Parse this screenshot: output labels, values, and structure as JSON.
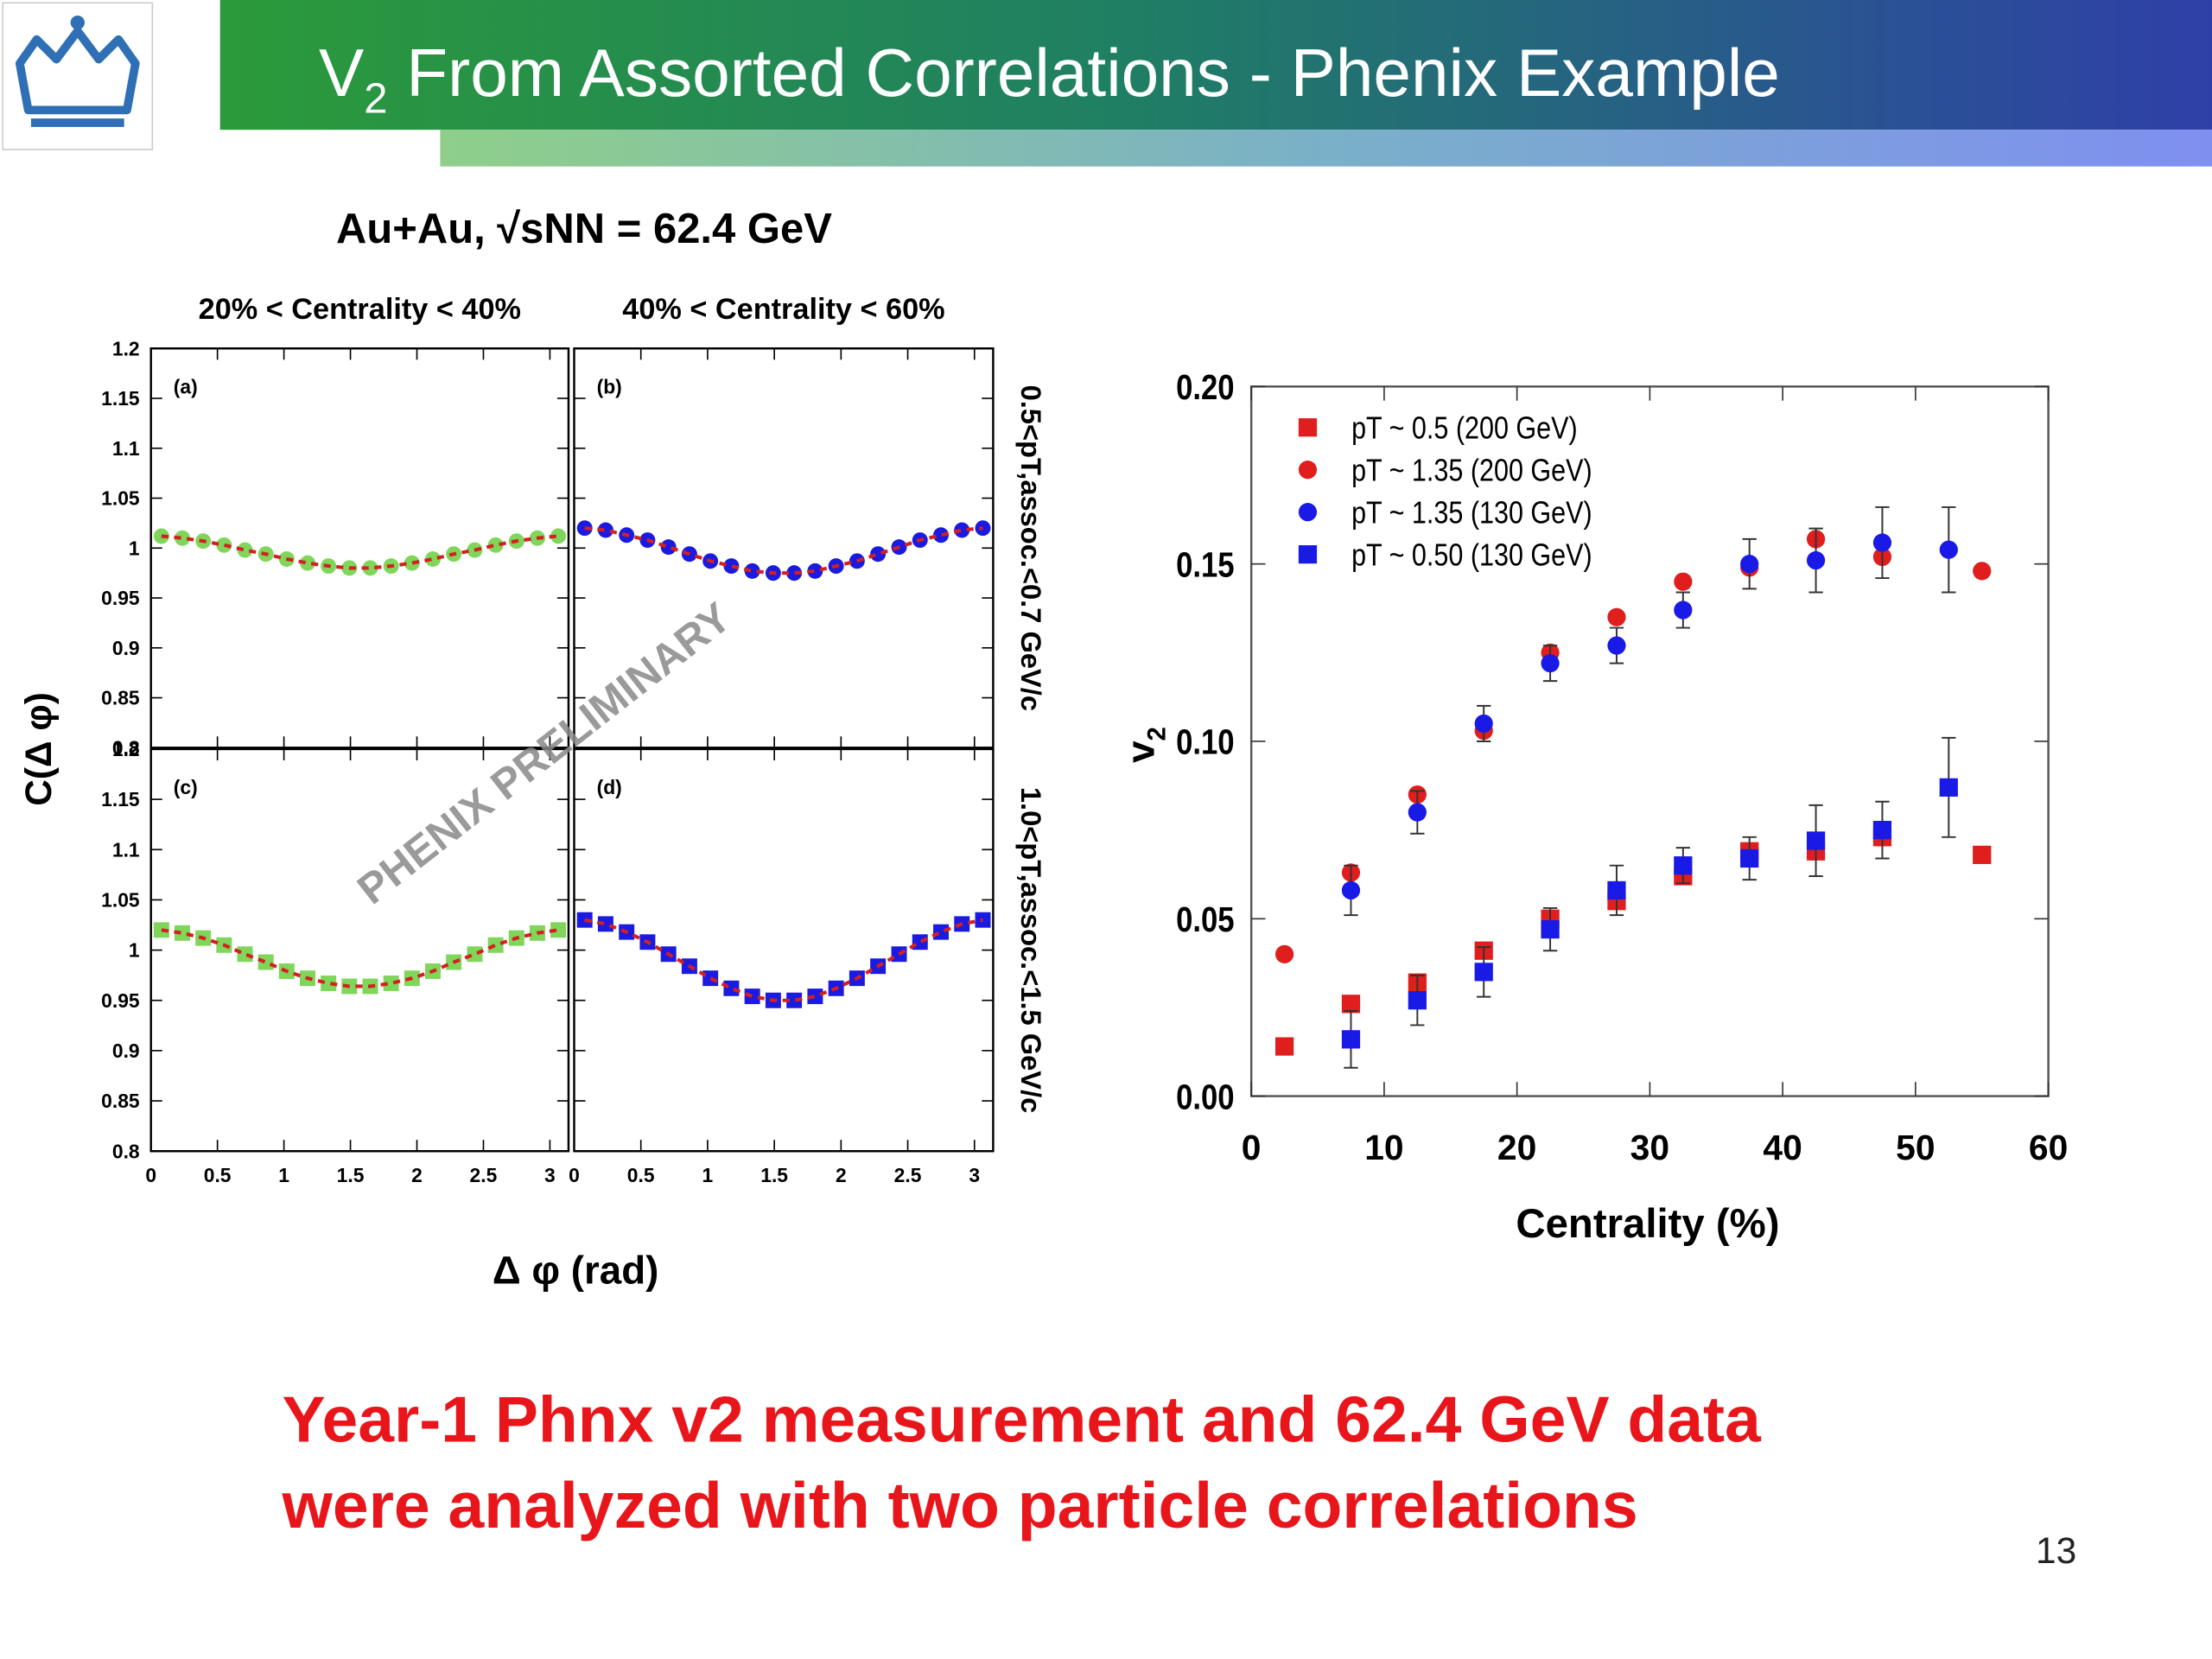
{
  "slide": {
    "title_main": "V",
    "title_sub": "2",
    "title_rest": " From Assorted Correlations - Phenix Example",
    "conclusion": [
      "Year-1 Phnx v2 measurement and 62.4 GeV data",
      "were analyzed with two particle correlations"
    ],
    "page_number": "13"
  },
  "chart_data": [
    {
      "type": "small-multiples",
      "title": "Au+Au, √sNN = 62.4 GeV",
      "column_titles": [
        "20% < Centrality < 40%",
        "40% < Centrality < 60%"
      ],
      "row_labels": [
        "0.5<pT,assoc.<0.7 GeV/c",
        "1.0<pT,assoc.<1.5 GeV/c"
      ],
      "xlabel": "Δ φ (rad)",
      "ylabel": "C(Δ φ)",
      "annotation": "PHENIX PRELIMINARY",
      "xlim": [
        0,
        3.14
      ],
      "xticks": [
        0,
        0.5,
        1,
        1.5,
        2,
        2.5,
        3
      ],
      "ylim": [
        0.8,
        1.2
      ],
      "yticks": [
        0.8,
        0.85,
        0.9,
        0.95,
        1,
        1.05,
        1.1,
        1.15,
        1.2
      ],
      "fit_color": "#d42020",
      "x": [
        0.079,
        0.236,
        0.393,
        0.55,
        0.707,
        0.864,
        1.021,
        1.178,
        1.335,
        1.492,
        1.649,
        1.806,
        1.963,
        2.12,
        2.277,
        2.435,
        2.592,
        2.749,
        2.906,
        3.063
      ],
      "panels": [
        {
          "label": "(a)",
          "color": "#7fd65a",
          "marker": "circle",
          "values": [
            1.012,
            1.01,
            1.007,
            1.003,
            0.998,
            0.994,
            0.989,
            0.985,
            0.982,
            0.98,
            0.98,
            0.982,
            0.985,
            0.989,
            0.994,
            0.998,
            1.003,
            1.007,
            1.01,
            1.012
          ]
        },
        {
          "label": "(b)",
          "color": "#1a1ae0",
          "marker": "circle",
          "values": [
            1.02,
            1.018,
            1.013,
            1.008,
            1.001,
            0.994,
            0.987,
            0.982,
            0.977,
            0.975,
            0.975,
            0.977,
            0.982,
            0.987,
            0.994,
            1.001,
            1.008,
            1.013,
            1.018,
            1.02
          ]
        },
        {
          "label": "(c)",
          "color": "#7fd65a",
          "marker": "square",
          "values": [
            1.02,
            1.017,
            1.012,
            1.005,
            0.996,
            0.988,
            0.979,
            0.972,
            0.967,
            0.964,
            0.964,
            0.967,
            0.972,
            0.979,
            0.988,
            0.996,
            1.005,
            1.012,
            1.017,
            1.02
          ]
        },
        {
          "label": "(d)",
          "color": "#1a1ae0",
          "marker": "square",
          "values": [
            1.03,
            1.026,
            1.018,
            1.008,
            0.996,
            0.984,
            0.972,
            0.962,
            0.954,
            0.95,
            0.95,
            0.954,
            0.962,
            0.972,
            0.984,
            0.996,
            1.008,
            1.018,
            1.026,
            1.03
          ]
        }
      ]
    },
    {
      "type": "scatter",
      "xlabel": "Centrality (%)",
      "ylabel": "v",
      "ylabel_sub": "2",
      "xlim": [
        0,
        60
      ],
      "xticks": [
        0,
        10,
        20,
        30,
        40,
        50,
        60
      ],
      "ylim": [
        0,
        0.2
      ],
      "yticks": [
        {
          "value": 0,
          "label": "0.00"
        },
        {
          "value": 0.05,
          "label": "0.05"
        },
        {
          "value": 0.1,
          "label": "0.10"
        },
        {
          "value": 0.15,
          "label": "0.15"
        },
        {
          "value": 0.2,
          "label": "0.20"
        }
      ],
      "series": [
        {
          "name": "pT ~ 0.5 (200 GeV)",
          "color": "#e01e1e",
          "marker": "square",
          "x": [
            2.5,
            7.5,
            12.5,
            17.5,
            22.5,
            27.5,
            32.5,
            37.5,
            42.5,
            47.5,
            55
          ],
          "values": [
            0.014,
            0.026,
            0.032,
            0.041,
            0.05,
            0.055,
            0.062,
            0.069,
            0.069,
            0.073,
            0.068
          ]
        },
        {
          "name": "pT ~ 1.35 (200 GeV)",
          "color": "#e01e1e",
          "marker": "circle",
          "x": [
            2.5,
            7.5,
            12.5,
            17.5,
            22.5,
            27.5,
            32.5,
            37.5,
            42.5,
            47.5,
            55
          ],
          "values": [
            0.04,
            0.063,
            0.085,
            0.103,
            0.125,
            0.135,
            0.145,
            0.149,
            0.157,
            0.152,
            0.148
          ]
        },
        {
          "name": "pT  ~ 1.35 (130 GeV)",
          "color": "#1a1ae6",
          "marker": "circle",
          "x": [
            7.5,
            12.5,
            17.5,
            22.5,
            27.5,
            32.5,
            37.5,
            42.5,
            47.5,
            52.5
          ],
          "values": [
            0.058,
            0.08,
            0.105,
            0.122,
            0.127,
            0.137,
            0.15,
            0.151,
            0.156,
            0.154
          ],
          "errors": [
            0.007,
            0.006,
            0.005,
            0.005,
            0.005,
            0.005,
            0.007,
            0.009,
            0.01,
            0.012
          ]
        },
        {
          "name": "pT  ~ 0.50 (130 GeV)",
          "color": "#1a1ae6",
          "marker": "square",
          "x": [
            7.5,
            12.5,
            17.5,
            22.5,
            27.5,
            32.5,
            37.5,
            42.5,
            47.5,
            52.5
          ],
          "values": [
            0.016,
            0.027,
            0.035,
            0.047,
            0.058,
            0.065,
            0.067,
            0.072,
            0.075,
            0.087
          ],
          "errors": [
            0.008,
            0.007,
            0.007,
            0.006,
            0.007,
            0.005,
            0.006,
            0.01,
            0.008,
            0.014
          ]
        }
      ]
    }
  ]
}
